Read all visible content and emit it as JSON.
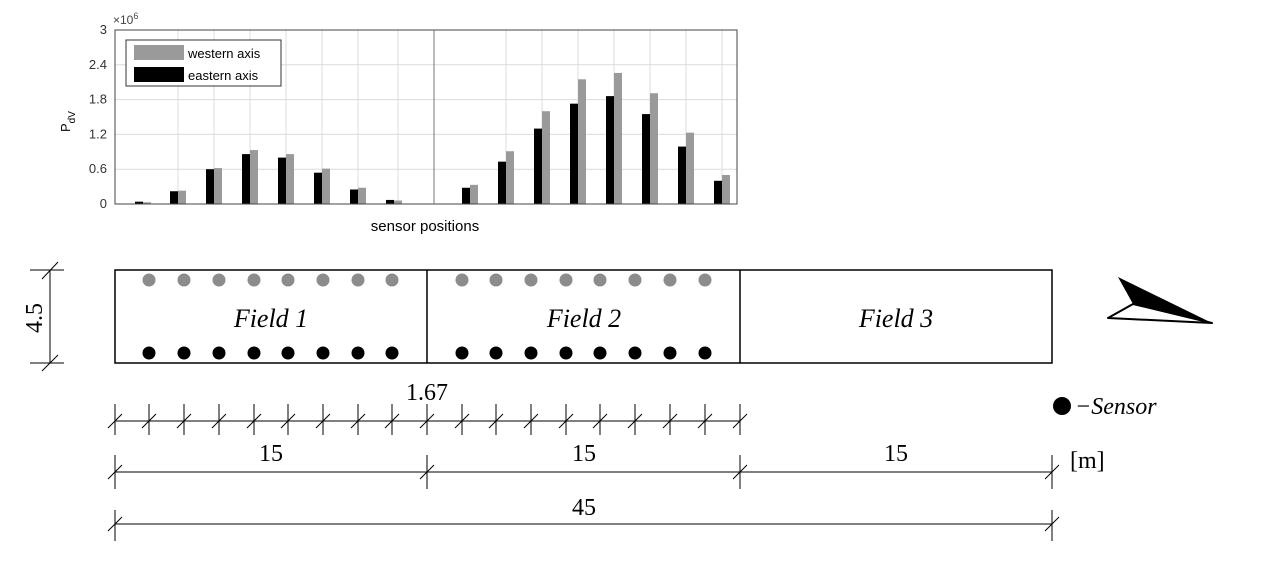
{
  "chart_data": {
    "type": "bar",
    "xlabel": "sensor positions",
    "ylabel": "P",
    "ylabel_sub": "dV",
    "y_multiplier": "×10",
    "y_multiplier_exp": "6",
    "ylim": [
      0,
      3
    ],
    "yticks": [
      "0",
      "0.6",
      "1.2",
      "1.8",
      "2.4",
      "3"
    ],
    "legend_position": "top-left",
    "grid": true,
    "series": [
      {
        "name": "eastern axis",
        "color": "#000000",
        "values": [
          0.04,
          0.22,
          0.6,
          0.86,
          0.8,
          0.54,
          0.25,
          0.07,
          0.28,
          0.73,
          1.3,
          1.73,
          1.86,
          1.55,
          0.99,
          0.4
        ]
      },
      {
        "name": "western axis",
        "color": "#9a9a9a",
        "values": [
          0.03,
          0.23,
          0.62,
          0.93,
          0.86,
          0.61,
          0.28,
          0.06,
          0.33,
          0.91,
          1.6,
          2.15,
          2.26,
          1.91,
          1.23,
          0.5
        ]
      }
    ]
  },
  "diagram": {
    "fields": [
      "Field 1",
      "Field 2",
      "Field 3"
    ],
    "height_label": "4.5",
    "spacing_label": "1.67",
    "field_length_labels": [
      "15",
      "15",
      "15"
    ],
    "total_length_label": "45",
    "unit_label": "[m]",
    "sensor_legend": "−Sensor",
    "sensors_per_field": 8,
    "colors": {
      "western_sensor": "#8c8c8c",
      "eastern_sensor": "#000000"
    }
  }
}
